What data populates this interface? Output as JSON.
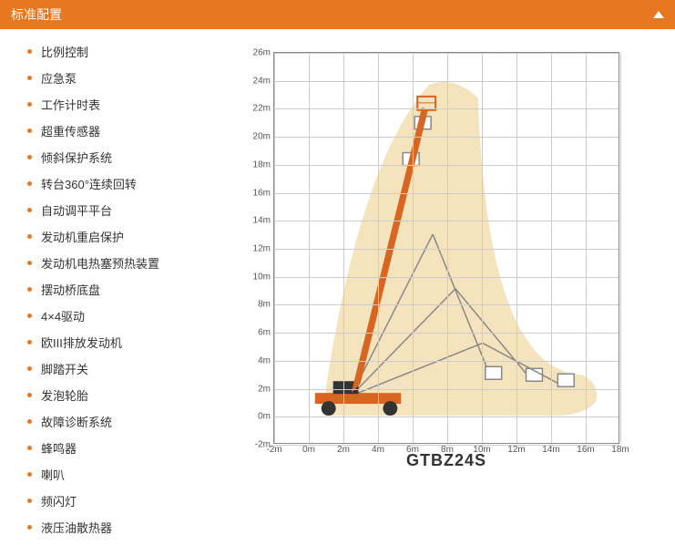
{
  "header": {
    "title": "标准配置"
  },
  "features": [
    "比例控制",
    "应急泵",
    "工作计时表",
    "超重传感器",
    "倾斜保护系统",
    "转台360°连续回转",
    "自动调平平台",
    "发动机重启保护",
    "发动机电热塞预热装置",
    "摆动桥底盘",
    "4×4驱动",
    "欧III排放发动机",
    "脚踏开关",
    "发泡轮胎",
    "故障诊断系统",
    "蜂鸣器",
    "喇叭",
    "频闪灯",
    "液压油散热器"
  ],
  "chart": {
    "model": "GTBZ24S",
    "x_range": [
      -2,
      18
    ],
    "x_step": 2,
    "y_range": [
      -2,
      26
    ],
    "y_step": 2,
    "x_labels": [
      "-2m",
      "0m",
      "2m",
      "4m",
      "6m",
      "8m",
      "10m",
      "12m",
      "14m",
      "16m",
      "18m"
    ],
    "y_labels": [
      "-2m",
      "0m",
      "2m",
      "4m",
      "6m",
      "8m",
      "10m",
      "12m",
      "14m",
      "16m",
      "18m",
      "20m",
      "22m",
      "24m",
      "26m"
    ],
    "colors": {
      "grid": "#cccccc",
      "envelope": "#f5e0b7",
      "machine_orange": "#d86520",
      "machine_dark": "#333333"
    }
  }
}
